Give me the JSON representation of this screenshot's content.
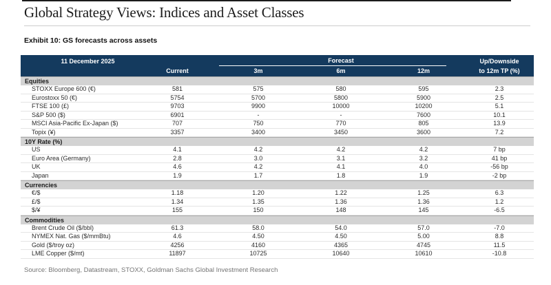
{
  "page": {
    "title": "Global Strategy Views: Indices and Asset Classes",
    "exhibit_title": "Exhibit 10: GS forecasts across assets",
    "source": "Source: Bloomberg, Datastream, STOXX, Goldman Sachs Global Investment Research"
  },
  "colors": {
    "header_background": "#143a5e",
    "header_text": "#ffffff",
    "section_background": "#d3d3d3",
    "row_divider": "#e4e4e4",
    "top_rule": "#1b1b1b",
    "source_text": "#757575"
  },
  "table": {
    "date_label": "11 December 2025",
    "columns": {
      "current": "Current",
      "forecast_group": "Forecast",
      "forecast_periods": [
        "3m",
        "6m",
        "12m"
      ],
      "updown_line1": "Up/Downside",
      "updown_line2": "to 12m TP (%)"
    },
    "sections": [
      {
        "name": "Equities",
        "rows": [
          {
            "label": "STOXX Europe 600 (€)",
            "current": "581",
            "m3": "575",
            "m6": "580",
            "m12": "595",
            "updown": "2.3"
          },
          {
            "label": "Eurostoxx 50 (€)",
            "current": "5754",
            "m3": "5700",
            "m6": "5800",
            "m12": "5900",
            "updown": "2.5"
          },
          {
            "label": "FTSE 100 (£)",
            "current": "9703",
            "m3": "9900",
            "m6": "10000",
            "m12": "10200",
            "updown": "5.1"
          },
          {
            "label": "S&P 500 ($)",
            "current": "6901",
            "m3": "-",
            "m6": "-",
            "m12": "7600",
            "updown": "10.1"
          },
          {
            "label": "MSCI Asia-Pacific Ex-Japan ($)",
            "current": "707",
            "m3": "750",
            "m6": "770",
            "m12": "805",
            "updown": "13.9"
          },
          {
            "label": "Topix (¥)",
            "current": "3357",
            "m3": "3400",
            "m6": "3450",
            "m12": "3600",
            "updown": "7.2"
          }
        ]
      },
      {
        "name": "10Y Rate (%)",
        "rows": [
          {
            "label": "US",
            "current": "4.1",
            "m3": "4.2",
            "m6": "4.2",
            "m12": "4.2",
            "updown": "7 bp"
          },
          {
            "label": "Euro Area (Germany)",
            "current": "2.8",
            "m3": "3.0",
            "m6": "3.1",
            "m12": "3.2",
            "updown": "41 bp"
          },
          {
            "label": "UK",
            "current": "4.6",
            "m3": "4.2",
            "m6": "4.1",
            "m12": "4.0",
            "updown": "-56 bp"
          },
          {
            "label": "Japan",
            "current": "1.9",
            "m3": "1.7",
            "m6": "1.8",
            "m12": "1.9",
            "updown": "-2 bp"
          }
        ]
      },
      {
        "name": "Currencies",
        "rows": [
          {
            "label": "€/$",
            "current": "1.18",
            "m3": "1.20",
            "m6": "1.22",
            "m12": "1.25",
            "updown": "6.3"
          },
          {
            "label": "£/$",
            "current": "1.34",
            "m3": "1.35",
            "m6": "1.36",
            "m12": "1.36",
            "updown": "1.2"
          },
          {
            "label": "$/¥",
            "current": "155",
            "m3": "150",
            "m6": "148",
            "m12": "145",
            "updown": "-6.5"
          }
        ]
      },
      {
        "name": "Commodities",
        "rows": [
          {
            "label": "Brent Crude Oil ($/bbl)",
            "current": "61.3",
            "m3": "58.0",
            "m6": "54.0",
            "m12": "57.0",
            "updown": "-7.0"
          },
          {
            "label": "NYMEX Nat. Gas ($/mmBtu)",
            "current": "4.6",
            "m3": "4.50",
            "m6": "4.50",
            "m12": "5.00",
            "updown": "8.8"
          },
          {
            "label": "Gold ($/troy oz)",
            "current": "4256",
            "m3": "4160",
            "m6": "4365",
            "m12": "4745",
            "updown": "11.5"
          },
          {
            "label": "LME Copper ($/mt)",
            "current": "11897",
            "m3": "10725",
            "m6": "10640",
            "m12": "10610",
            "updown": "-10.8"
          }
        ]
      }
    ]
  }
}
